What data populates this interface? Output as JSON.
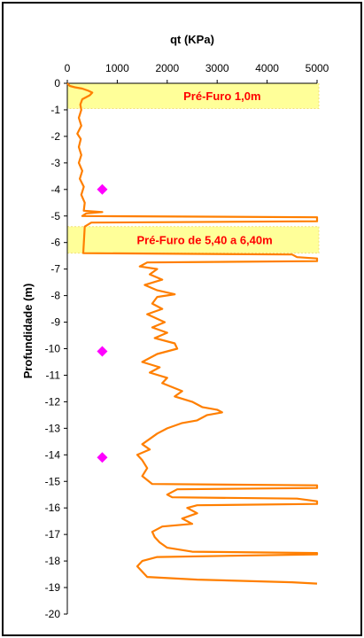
{
  "chart_data": {
    "type": "line",
    "title": "",
    "xlabel": "qt (KPa)",
    "ylabel": "Profundidade (m)",
    "x_axis_position": "top",
    "xlim": [
      0,
      5000
    ],
    "ylim": [
      -20,
      0
    ],
    "xticks": [
      0,
      1000,
      2000,
      3000,
      4000,
      5000
    ],
    "yticks": [
      0,
      -1,
      -2,
      -3,
      -4,
      -5,
      -6,
      -7,
      -8,
      -9,
      -10,
      -11,
      -12,
      -13,
      -14,
      -15,
      -16,
      -17,
      -18,
      -19,
      -20
    ],
    "grid": false,
    "legend": "none",
    "colors": {
      "line": "#ff7f00",
      "points": "#ff00ff",
      "band_fill": "#ffff99",
      "band_text": "#ff0000"
    },
    "annotations": [
      {
        "text": "Pré-Furo 1,0m",
        "depth_top": 0,
        "depth_bottom": -0.95
      },
      {
        "text": "Pré-Furo de 5,40 a 6,40m",
        "depth_top": -5.4,
        "depth_bottom": -6.4
      }
    ],
    "series": [
      {
        "kind": "line",
        "points": [
          [
            0,
            0
          ],
          [
            50,
            -0.1
          ],
          [
            150,
            -0.15
          ],
          [
            300,
            -0.2
          ],
          [
            420,
            -0.28
          ],
          [
            500,
            -0.35
          ],
          [
            450,
            -0.45
          ],
          [
            300,
            -0.6
          ],
          [
            260,
            -0.8
          ],
          [
            280,
            -1.0
          ],
          [
            230,
            -1.3
          ],
          [
            280,
            -1.6
          ],
          [
            200,
            -1.9
          ],
          [
            270,
            -2.1
          ],
          [
            230,
            -2.4
          ],
          [
            280,
            -2.7
          ],
          [
            230,
            -3.0
          ],
          [
            300,
            -3.3
          ],
          [
            250,
            -3.6
          ],
          [
            330,
            -3.9
          ],
          [
            280,
            -4.2
          ],
          [
            350,
            -4.5
          ],
          [
            330,
            -4.8
          ],
          [
            700,
            -4.85
          ],
          [
            380,
            -4.9
          ],
          [
            300,
            -5.0
          ],
          [
            5000,
            -5.05
          ],
          [
            5000,
            -5.2
          ],
          [
            480,
            -5.25
          ],
          [
            350,
            -5.4
          ],
          [
            320,
            -6.4
          ],
          [
            4500,
            -6.45
          ],
          [
            4600,
            -6.55
          ],
          [
            5000,
            -6.6
          ],
          [
            5000,
            -6.7
          ],
          [
            1600,
            -6.75
          ],
          [
            1450,
            -6.9
          ],
          [
            1800,
            -7.0
          ],
          [
            1650,
            -7.2
          ],
          [
            1900,
            -7.4
          ],
          [
            1550,
            -7.6
          ],
          [
            1800,
            -7.8
          ],
          [
            2150,
            -7.95
          ],
          [
            1800,
            -8.05
          ],
          [
            1700,
            -8.3
          ],
          [
            1900,
            -8.5
          ],
          [
            1600,
            -8.7
          ],
          [
            1950,
            -9.0
          ],
          [
            1700,
            -9.2
          ],
          [
            2000,
            -9.4
          ],
          [
            1750,
            -9.6
          ],
          [
            2150,
            -9.8
          ],
          [
            2200,
            -10.0
          ],
          [
            1800,
            -10.2
          ],
          [
            1600,
            -10.4
          ],
          [
            1500,
            -10.5
          ],
          [
            1850,
            -10.7
          ],
          [
            1650,
            -10.9
          ],
          [
            2000,
            -11.1
          ],
          [
            1900,
            -11.3
          ],
          [
            2300,
            -11.6
          ],
          [
            2150,
            -11.8
          ],
          [
            2500,
            -12.0
          ],
          [
            2700,
            -12.2
          ],
          [
            3000,
            -12.3
          ],
          [
            3100,
            -12.4
          ],
          [
            2800,
            -12.5
          ],
          [
            2600,
            -12.7
          ],
          [
            2300,
            -12.8
          ],
          [
            2000,
            -13.0
          ],
          [
            1800,
            -13.2
          ],
          [
            1650,
            -13.4
          ],
          [
            1500,
            -13.6
          ],
          [
            1650,
            -13.8
          ],
          [
            1400,
            -14.0
          ],
          [
            1500,
            -14.2
          ],
          [
            1600,
            -14.5
          ],
          [
            1500,
            -14.8
          ],
          [
            1700,
            -15.1
          ],
          [
            5000,
            -15.15
          ],
          [
            5000,
            -15.25
          ],
          [
            2200,
            -15.3
          ],
          [
            2000,
            -15.5
          ],
          [
            2100,
            -15.6
          ],
          [
            4600,
            -15.65
          ],
          [
            5000,
            -15.75
          ],
          [
            5000,
            -15.85
          ],
          [
            2600,
            -15.9
          ],
          [
            2400,
            -16.0
          ],
          [
            2600,
            -16.2
          ],
          [
            2300,
            -16.4
          ],
          [
            2500,
            -16.6
          ],
          [
            1900,
            -16.7
          ],
          [
            1700,
            -16.9
          ],
          [
            1750,
            -17.1
          ],
          [
            1850,
            -17.3
          ],
          [
            2000,
            -17.5
          ],
          [
            2500,
            -17.65
          ],
          [
            5000,
            -17.7
          ],
          [
            5000,
            -17.75
          ],
          [
            1800,
            -17.85
          ],
          [
            1500,
            -18.0
          ],
          [
            1400,
            -18.2
          ],
          [
            1500,
            -18.4
          ],
          [
            1600,
            -18.6
          ],
          [
            2600,
            -18.7
          ],
          [
            4500,
            -18.8
          ],
          [
            5000,
            -18.85
          ]
        ]
      },
      {
        "kind": "markers",
        "points": [
          [
            700,
            -4.0
          ],
          [
            700,
            -10.1
          ],
          [
            700,
            -14.1
          ]
        ]
      }
    ]
  }
}
